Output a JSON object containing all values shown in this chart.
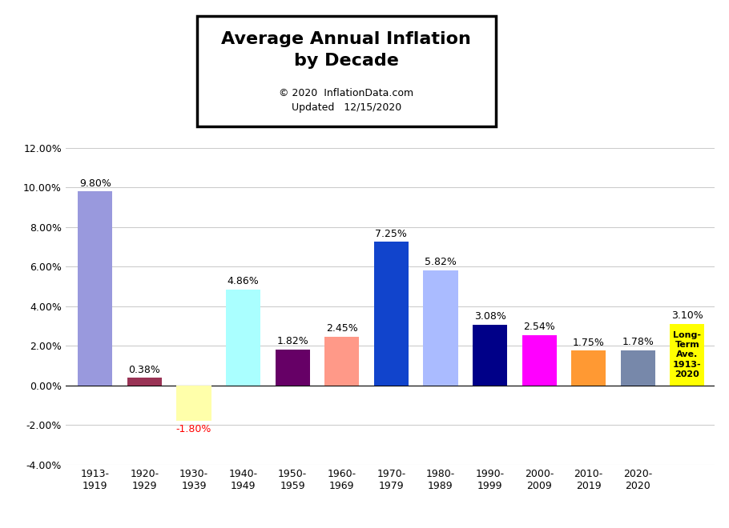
{
  "categories": [
    "1913-\n1919",
    "1920-\n1929",
    "1930-\n1939",
    "1940-\n1949",
    "1950-\n1959",
    "1960-\n1969",
    "1970-\n1979",
    "1980-\n1989",
    "1990-\n1999",
    "2000-\n2009",
    "2010-\n2019",
    "2020-\n2020"
  ],
  "values": [
    9.8,
    0.38,
    -1.8,
    4.86,
    1.82,
    2.45,
    7.25,
    5.82,
    3.08,
    2.54,
    1.75,
    1.78
  ],
  "bar_colors": [
    "#9999dd",
    "#993355",
    "#ffffaa",
    "#aaffff",
    "#660066",
    "#ff9988",
    "#1144cc",
    "#aabbff",
    "#000088",
    "#ff00ff",
    "#ff9933",
    "#7788aa"
  ],
  "long_term_value": 3.1,
  "long_term_label": "Long-\nTerm\nAve.\n1913-\n2020",
  "long_term_color": "#ffff00",
  "title_line1": "Average Annual Inflation",
  "title_line2": "by Decade",
  "subtitle_line1": "© 2020  InflationData.com",
  "subtitle_line2": "Updated   12/15/2020",
  "ylim": [
    -4.0,
    12.0
  ],
  "yticks": [
    -4.0,
    -2.0,
    0.0,
    2.0,
    4.0,
    6.0,
    8.0,
    10.0,
    12.0
  ],
  "value_labels": [
    "9.80%",
    "0.38%",
    "-1.80%",
    "4.86%",
    "1.82%",
    "2.45%",
    "7.25%",
    "5.82%",
    "3.08%",
    "2.54%",
    "1.75%",
    "1.78%"
  ],
  "long_term_value_label": "3.10%",
  "negative_label_color": "#ff0000",
  "positive_label_color": "#000000"
}
